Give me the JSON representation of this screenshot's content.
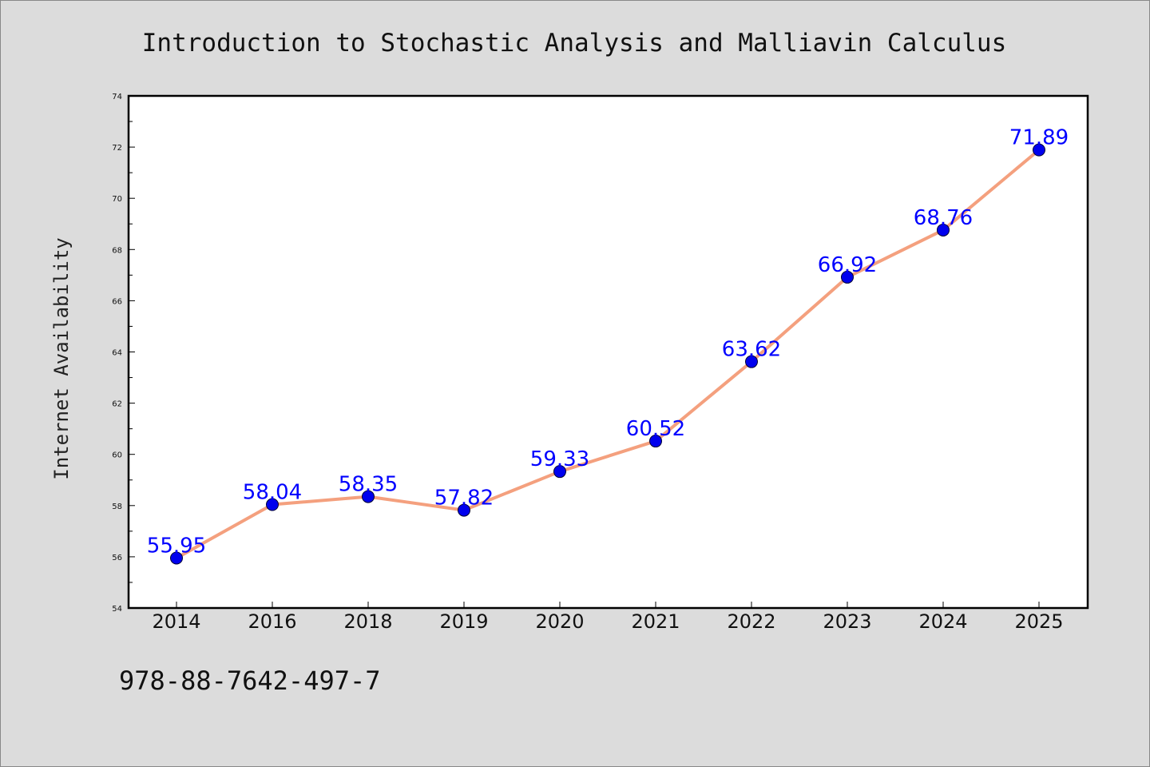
{
  "chart_data": {
    "type": "line",
    "title": "Introduction to Stochastic Analysis and Malliavin Calculus",
    "xlabel": "",
    "ylabel": "Internet Availability",
    "categories": [
      "2014",
      "2016",
      "2018",
      "2019",
      "2020",
      "2021",
      "2022",
      "2023",
      "2024",
      "2025"
    ],
    "series": [
      {
        "values": [
          55.95,
          58.04,
          58.35,
          57.82,
          59.33,
          60.52,
          63.62,
          66.92,
          68.76,
          71.89
        ],
        "labels": [
          "55.95",
          "58.04",
          "58.35",
          "57.82",
          "59.33",
          "60.52",
          "63.62",
          "66.92",
          "68.76",
          "71.89"
        ]
      }
    ],
    "ylim": [
      54,
      74
    ],
    "yticks": [
      54,
      56,
      58,
      60,
      62,
      64,
      66,
      68,
      70,
      72,
      74
    ],
    "grid": false,
    "legend": "none",
    "colors": {
      "line": "#f4a07e",
      "marker": "#0000ee",
      "label": "#0000ff",
      "background": "#dcdcdc",
      "plot_area": "#ffffff"
    }
  },
  "footer": {
    "isbn": "978-88-7642-497-7"
  }
}
